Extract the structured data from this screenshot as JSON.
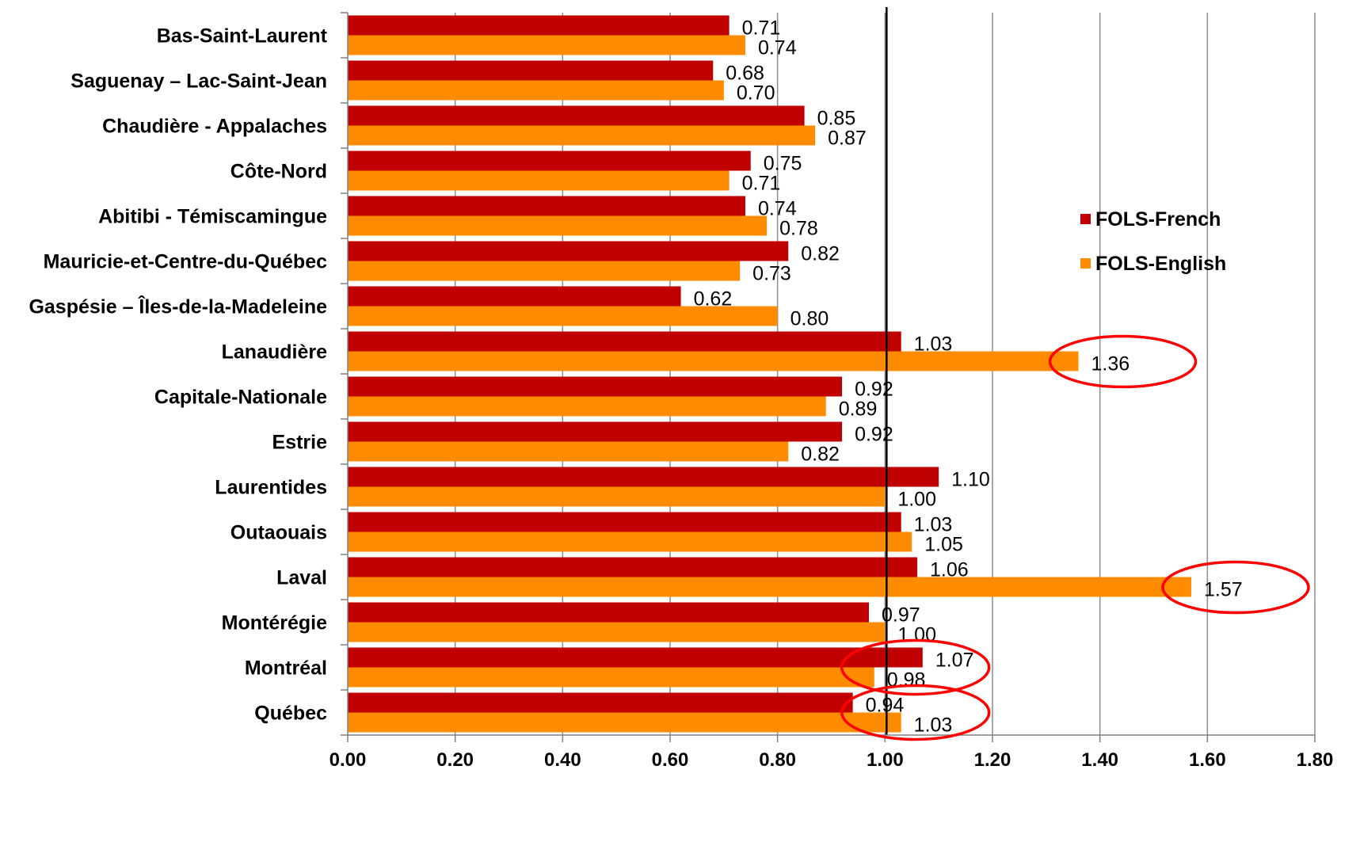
{
  "chart_data": {
    "type": "bar",
    "orientation": "horizontal",
    "title": "",
    "xlabel": "",
    "ylabel": "",
    "xlim": [
      0,
      1.8
    ],
    "xticks": [
      0,
      0.2,
      0.4,
      0.6,
      0.8,
      1.0,
      1.2,
      1.4,
      1.6,
      1.8
    ],
    "xtick_labels": [
      "0.00",
      "0.20",
      "0.40",
      "0.60",
      "0.80",
      "1.00",
      "1.20",
      "1.40",
      "1.60",
      "1.80"
    ],
    "grid": "vertical",
    "reference_line": 1.0,
    "legend_position": "right",
    "categories": [
      "Bas-Saint-Laurent",
      "Saguenay – Lac-Saint-Jean",
      "Chaudière - Appalaches",
      "Côte-Nord",
      "Abitibi - Témiscamingue",
      "Mauricie-et-Centre-du-Québec",
      "Gaspésie – Îles-de-la-Madeleine",
      "Lanaudière",
      "Capitale-Nationale",
      "Estrie",
      "Laurentides",
      "Outaouais",
      "Laval",
      "Montérégie",
      "Montréal",
      "Québec"
    ],
    "series": [
      {
        "name": "FOLS-French",
        "color": "#c00000",
        "values": [
          0.71,
          0.68,
          0.85,
          0.75,
          0.74,
          0.82,
          0.62,
          1.03,
          0.92,
          0.92,
          1.1,
          1.03,
          1.06,
          0.97,
          1.07,
          0.94
        ],
        "labels": [
          "0.71",
          "0.68",
          "0.85",
          "0.75",
          "0.74",
          "0.82",
          "0.62",
          "1.03",
          "0.92",
          "0.92",
          "1.10",
          "1.03",
          "1.06",
          "0.97",
          "1.07",
          "0.94"
        ]
      },
      {
        "name": "FOLS-English",
        "color": "#ff8c00",
        "values": [
          0.74,
          0.7,
          0.87,
          0.71,
          0.78,
          0.73,
          0.8,
          1.36,
          0.89,
          0.82,
          1.0,
          1.05,
          1.57,
          1.0,
          0.98,
          1.03
        ],
        "labels": [
          "0.74",
          "0.70",
          "0.87",
          "0.71",
          "0.78",
          "0.73",
          "0.80",
          "1.36",
          "0.89",
          "0.82",
          "1.00",
          "1.05",
          "1.57",
          "1.00",
          "0.98",
          "1.03"
        ]
      }
    ],
    "annotations": [
      {
        "type": "ellipse",
        "color": "#ff0000",
        "category": "Lanaudière",
        "series": "FOLS-English",
        "value": 1.36
      },
      {
        "type": "ellipse",
        "color": "#ff0000",
        "category": "Laval",
        "series": "FOLS-English",
        "value": 1.57
      },
      {
        "type": "ellipse",
        "color": "#ff0000",
        "category": "Montréal",
        "series": "both",
        "value": 1.03
      },
      {
        "type": "ellipse",
        "color": "#ff0000",
        "category": "Québec",
        "series": "both",
        "value": 1.03
      }
    ]
  }
}
